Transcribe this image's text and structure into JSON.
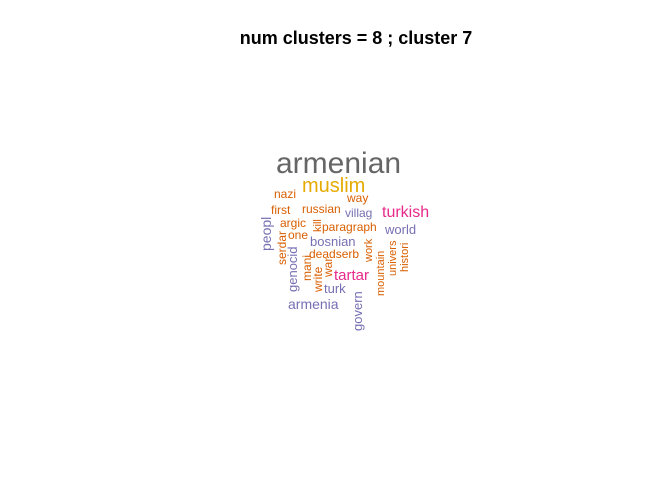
{
  "title": "num clusters  =  8 ; cluster 7",
  "colors": {
    "gray": "#666666",
    "gold": "#E6AB02",
    "orange": "#D95F02",
    "purple": "#7570B3",
    "pink": "#E7298A",
    "brown": "#A6761D"
  },
  "words": [
    {
      "text": "armenian",
      "color": "#666666"
    },
    {
      "text": "muslim",
      "color": "#E6AB02"
    },
    {
      "text": "nazi",
      "color": "#D95F02"
    },
    {
      "text": "way",
      "color": "#D95F02"
    },
    {
      "text": "first",
      "color": "#D95F02"
    },
    {
      "text": "russian",
      "color": "#D95F02"
    },
    {
      "text": "villag",
      "color": "#7570B3"
    },
    {
      "text": "turkish",
      "color": "#E7298A"
    },
    {
      "text": "argic",
      "color": "#D95F02"
    },
    {
      "text": "kill",
      "color": "#D95F02"
    },
    {
      "text": "paragraph",
      "color": "#D95F02"
    },
    {
      "text": "peopl",
      "color": "#7570B3"
    },
    {
      "text": "one",
      "color": "#D95F02"
    },
    {
      "text": "world",
      "color": "#7570B3"
    },
    {
      "text": "bosnian",
      "color": "#7570B3"
    },
    {
      "text": "serdar",
      "color": "#D95F02"
    },
    {
      "text": "genocid",
      "color": "#7570B3"
    },
    {
      "text": "deadserb",
      "color": "#D95F02"
    },
    {
      "text": "work",
      "color": "#D95F02"
    },
    {
      "text": "univers",
      "color": "#D95F02"
    },
    {
      "text": "histori",
      "color": "#D95F02"
    },
    {
      "text": "mani",
      "color": "#D95F02"
    },
    {
      "text": "war",
      "color": "#D95F02"
    },
    {
      "text": "write",
      "color": "#D95F02"
    },
    {
      "text": "mountain",
      "color": "#D95F02"
    },
    {
      "text": "tartar",
      "color": "#E7298A"
    },
    {
      "text": "turk",
      "color": "#7570B3"
    },
    {
      "text": "armenia",
      "color": "#7570B3"
    },
    {
      "text": "govern",
      "color": "#7570B3"
    }
  ]
}
